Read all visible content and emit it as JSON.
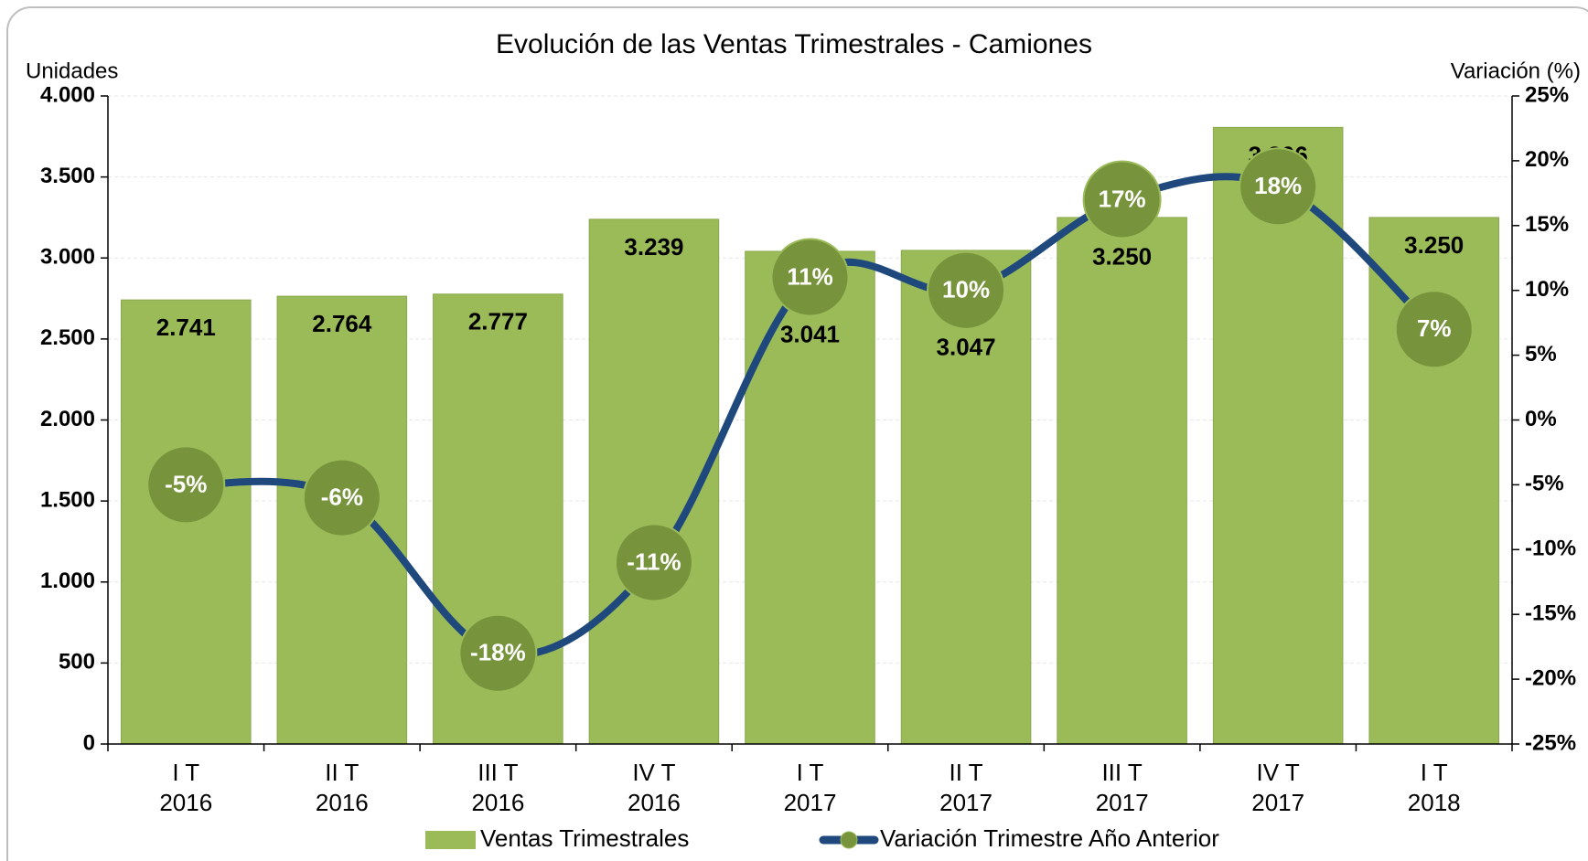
{
  "chart_data": {
    "type": "bar_line",
    "title": "Evolución de las Ventas Trimestrales - Camiones",
    "y_label": "Unidades",
    "y2_label": "Variación (%)",
    "categories": [
      "I T\n2016",
      "II T\n2016",
      "III T\n2016",
      "IV T\n2016",
      "I T\n2017",
      "II T\n2017",
      "III T\n2017",
      "IV T\n2017",
      "I T\n2018"
    ],
    "series": [
      {
        "name": "Ventas Trimestrales",
        "type": "bar",
        "color": "#9bbb59",
        "values": [
          2741,
          2764,
          2777,
          3239,
          3041,
          3047,
          3250,
          3806,
          3250
        ],
        "value_labels": [
          "2.741",
          "2.764",
          "2.777",
          "3.239",
          "3.041",
          "3.047",
          "3.250",
          "3.806",
          "3.250"
        ]
      },
      {
        "name": "Variación Trimestre Año Anterior",
        "type": "line",
        "axis": "y2",
        "color": "#1f497d",
        "marker_color": "#77933c",
        "values": [
          -5,
          -6,
          -18,
          -11,
          11,
          10,
          17,
          18,
          7
        ],
        "value_labels": [
          "-5%",
          "-6%",
          "-18%",
          "-11%",
          "11%",
          "10%",
          "17%",
          "18%",
          "7%"
        ]
      }
    ],
    "ylim": [
      0,
      4000
    ],
    "yticks": [
      0,
      500,
      {
        "value": 1000,
        "label": "1.000"
      },
      {
        "value": 1500,
        "label": "1.500"
      },
      {
        "value": 2000,
        "label": "2.000"
      },
      {
        "value": 2500,
        "label": "2.500"
      },
      {
        "value": 3000,
        "label": "3.000"
      },
      {
        "value": 3500,
        "label": "3.500"
      },
      {
        "value": 4000,
        "label": "4.000"
      }
    ],
    "y2lim": [
      -25,
      25
    ],
    "y2ticks": [
      {
        "value": -25,
        "label": "-25%"
      },
      {
        "value": -20,
        "label": "-20%"
      },
      {
        "value": -15,
        "label": "-15%"
      },
      {
        "value": -10,
        "label": "-10%"
      },
      {
        "value": -5,
        "label": "-5%"
      },
      {
        "value": 0,
        "label": "0%"
      },
      {
        "value": 5,
        "label": "5%"
      },
      {
        "value": 10,
        "label": "10%"
      },
      {
        "value": 15,
        "label": "15%"
      },
      {
        "value": 20,
        "label": "20%"
      },
      {
        "value": 25,
        "label": "25%"
      }
    ],
    "grid": true,
    "legend": "bottom"
  }
}
